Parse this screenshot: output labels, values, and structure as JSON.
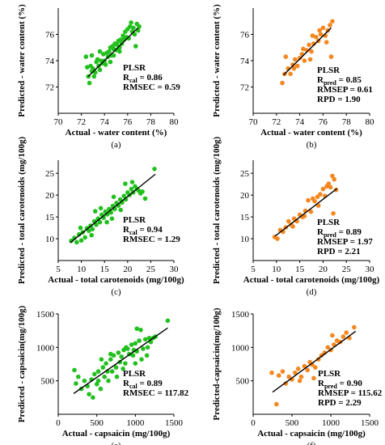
{
  "chart_data": [
    {
      "panel": "a",
      "caption": "(a)",
      "type": "scatter",
      "color": "#22c01e",
      "xlabel": "Actual - water content (%)",
      "ylabel": "Predicted - water content (%)",
      "xlim": [
        70,
        80
      ],
      "ylim": [
        70,
        78
      ],
      "xticks": [
        "70",
        "72",
        "74",
        "76",
        "78",
        "80"
      ],
      "yticks": [
        "72",
        "74",
        "76"
      ],
      "fit": [
        [
          72.6,
          72.8
        ],
        [
          76.9,
          76.5
        ]
      ],
      "annotation": [
        {
          "main": "PLSR"
        },
        {
          "main": "R",
          "sub": "cal",
          "rest": " = 0.86"
        },
        {
          "main": "RMSEC = 0.59"
        }
      ],
      "points": [
        [
          72.4,
          74.3
        ],
        [
          72.5,
          73.5
        ],
        [
          72.6,
          72.8
        ],
        [
          72.7,
          72.3
        ],
        [
          72.8,
          73.6
        ],
        [
          72.9,
          74.4
        ],
        [
          73.0,
          73.4
        ],
        [
          73.1,
          72.8
        ],
        [
          73.2,
          73.1
        ],
        [
          73.3,
          73.9
        ],
        [
          73.4,
          74.1
        ],
        [
          73.5,
          73.6
        ],
        [
          73.6,
          73.3
        ],
        [
          73.7,
          74.0
        ],
        [
          73.8,
          73.8
        ],
        [
          73.9,
          74.5
        ],
        [
          74.0,
          74.0
        ],
        [
          74.1,
          73.7
        ],
        [
          74.2,
          74.6
        ],
        [
          74.3,
          74.3
        ],
        [
          74.4,
          74.7
        ],
        [
          74.5,
          75.0
        ],
        [
          74.6,
          74.4
        ],
        [
          74.7,
          75.1
        ],
        [
          74.8,
          74.9
        ],
        [
          74.9,
          75.3
        ],
        [
          75.0,
          74.8
        ],
        [
          75.1,
          75.2
        ],
        [
          75.2,
          75.5
        ],
        [
          75.3,
          75.0
        ],
        [
          75.4,
          75.6
        ],
        [
          75.5,
          75.3
        ],
        [
          75.6,
          75.9
        ],
        [
          75.7,
          75.6
        ],
        [
          75.8,
          76.2
        ],
        [
          75.9,
          75.8
        ],
        [
          76.0,
          76.4
        ],
        [
          76.1,
          75.7
        ],
        [
          76.2,
          76.6
        ],
        [
          76.3,
          76.9
        ],
        [
          76.4,
          76.2
        ],
        [
          76.5,
          76.5
        ],
        [
          76.6,
          76.0
        ],
        [
          76.7,
          75.1
        ],
        [
          76.8,
          76.8
        ],
        [
          76.9,
          76.3
        ],
        [
          77.0,
          76.6
        ],
        [
          73.6,
          74.7
        ],
        [
          74.8,
          74.4
        ],
        [
          75.3,
          74.7
        ],
        [
          72.9,
          73.2
        ],
        [
          74.5,
          73.9
        ]
      ]
    },
    {
      "panel": "b",
      "caption": "(b)",
      "type": "scatter",
      "color": "#f4871f",
      "xlabel": "Actual - water content (%)",
      "ylabel": "Predicted - water content (%)",
      "xlim": [
        70,
        80
      ],
      "ylim": [
        70,
        78
      ],
      "xticks": [
        "70",
        "72",
        "74",
        "76",
        "78",
        "80"
      ],
      "yticks": [
        "72",
        "74",
        "76"
      ],
      "fit": [
        [
          72.6,
          72.9
        ],
        [
          76.7,
          76.5
        ]
      ],
      "annotation": [
        {
          "main": "PLSR"
        },
        {
          "main": "R",
          "sub": "pred",
          "rest": " = 0.85"
        },
        {
          "main": "RMSEP = 0.61"
        },
        {
          "main": "RPD = 1.90"
        }
      ],
      "points": [
        [
          72.5,
          72.3
        ],
        [
          72.7,
          73.0
        ],
        [
          72.8,
          74.3
        ],
        [
          73.0,
          73.4
        ],
        [
          73.2,
          73.0
        ],
        [
          73.4,
          73.7
        ],
        [
          73.6,
          74.1
        ],
        [
          73.8,
          73.6
        ],
        [
          74.0,
          74.2
        ],
        [
          74.2,
          74.5
        ],
        [
          74.4,
          74.0
        ],
        [
          74.6,
          74.8
        ],
        [
          74.8,
          75.2
        ],
        [
          75.0,
          74.7
        ],
        [
          75.2,
          75.3
        ],
        [
          75.4,
          75.8
        ],
        [
          75.6,
          75.5
        ],
        [
          75.8,
          76.0
        ],
        [
          76.0,
          76.5
        ],
        [
          76.2,
          75.9
        ],
        [
          76.4,
          76.3
        ],
        [
          76.6,
          76.7
        ],
        [
          76.7,
          74.3
        ],
        [
          76.8,
          77.0
        ],
        [
          74.3,
          74.9
        ],
        [
          75.1,
          75.9
        ],
        [
          73.5,
          73.4
        ],
        [
          74.9,
          74.1
        ],
        [
          75.7,
          76.3
        ],
        [
          76.3,
          75.4
        ]
      ]
    },
    {
      "panel": "c",
      "caption": "(c)",
      "type": "scatter",
      "color": "#22c01e",
      "xlabel": "Actual - total carotenoids (mg/100g)",
      "ylabel": "Predicted - total carotenoids (mg/100g)",
      "xlim": [
        5,
        30
      ],
      "ylim": [
        5,
        28
      ],
      "xticks": [
        "5",
        "10",
        "15",
        "20",
        "25",
        "30"
      ],
      "yticks": [
        "10",
        "15",
        "20",
        "25"
      ],
      "fit": [
        [
          7.6,
          9.1
        ],
        [
          26.0,
          24.8
        ]
      ],
      "annotation": [
        {
          "main": "PLSR"
        },
        {
          "main": "R",
          "sub": "cal",
          "rest": " = 0.94"
        },
        {
          "main": "RMSEC = 1.29"
        }
      ],
      "points": [
        [
          7.8,
          9.5
        ],
        [
          8.5,
          10.2
        ],
        [
          9.0,
          9.2
        ],
        [
          9.5,
          11.0
        ],
        [
          10.0,
          9.6
        ],
        [
          10.3,
          11.5
        ],
        [
          10.8,
          10.3
        ],
        [
          11.2,
          12.4
        ],
        [
          11.6,
          11.8
        ],
        [
          12.0,
          13.0
        ],
        [
          12.4,
          12.2
        ],
        [
          12.8,
          14.0
        ],
        [
          13.2,
          13.2
        ],
        [
          13.6,
          14.6
        ],
        [
          14.0,
          13.8
        ],
        [
          14.4,
          15.5
        ],
        [
          14.8,
          14.8
        ],
        [
          15.2,
          16.2
        ],
        [
          15.6,
          15.6
        ],
        [
          16.0,
          16.8
        ],
        [
          16.4,
          16.0
        ],
        [
          16.8,
          17.5
        ],
        [
          17.2,
          16.8
        ],
        [
          17.6,
          18.2
        ],
        [
          18.0,
          17.6
        ],
        [
          18.4,
          19.0
        ],
        [
          18.8,
          18.3
        ],
        [
          19.2,
          19.8
        ],
        [
          19.6,
          19.0
        ],
        [
          20.0,
          20.6
        ],
        [
          20.4,
          20.0
        ],
        [
          20.8,
          21.4
        ],
        [
          21.2,
          20.6
        ],
        [
          21.6,
          22.0
        ],
        [
          22.0,
          21.4
        ],
        [
          22.4,
          21.0
        ],
        [
          22.8,
          20.4
        ],
        [
          23.2,
          20.8
        ],
        [
          23.8,
          19.2
        ],
        [
          25.8,
          26.0
        ],
        [
          13.0,
          16.3
        ],
        [
          15.5,
          13.8
        ],
        [
          17.0,
          19.6
        ],
        [
          19.5,
          22.6
        ],
        [
          12.2,
          10.8
        ],
        [
          18.5,
          16.6
        ],
        [
          21.0,
          23.0
        ],
        [
          9.8,
          12.5
        ],
        [
          14.2,
          17.0
        ],
        [
          16.6,
          14.6
        ]
      ]
    },
    {
      "panel": "d",
      "caption": "(d)",
      "type": "scatter",
      "color": "#f4871f",
      "xlabel": "Actual - total carotenoids (mg/100g)",
      "ylabel": "Predicted - total carotenoids (mg/100g)",
      "xlim": [
        5,
        30
      ],
      "ylim": [
        5,
        28
      ],
      "xticks": [
        "5",
        "10",
        "15",
        "20",
        "25",
        "30"
      ],
      "yticks": [
        "10",
        "15",
        "20",
        "25"
      ],
      "fit": [
        [
          9.7,
          10.6
        ],
        [
          23.0,
          21.5
        ]
      ],
      "annotation": [
        {
          "main": "PLSR"
        },
        {
          "main": "R",
          "sub": "pred",
          "rest": " = 0.89"
        },
        {
          "main": "RMSEP = 1.97"
        },
        {
          "main": "RPD = 2.21"
        }
      ],
      "points": [
        [
          9.6,
          10.4
        ],
        [
          10.2,
          10.0
        ],
        [
          10.8,
          12.0
        ],
        [
          11.4,
          11.6
        ],
        [
          12.0,
          12.6
        ],
        [
          12.6,
          14.0
        ],
        [
          13.2,
          13.2
        ],
        [
          13.8,
          14.6
        ],
        [
          14.4,
          14.0
        ],
        [
          15.0,
          15.5
        ],
        [
          15.6,
          15.0
        ],
        [
          16.2,
          16.4
        ],
        [
          16.8,
          18.8
        ],
        [
          17.4,
          16.2
        ],
        [
          17.8,
          19.2
        ],
        [
          18.2,
          18.6
        ],
        [
          18.8,
          19.6
        ],
        [
          19.4,
          20.2
        ],
        [
          20.0,
          21.4
        ],
        [
          20.4,
          19.8
        ],
        [
          20.8,
          22.0
        ],
        [
          21.2,
          22.6
        ],
        [
          21.6,
          21.8
        ],
        [
          22.0,
          24.4
        ],
        [
          22.4,
          23.6
        ],
        [
          22.8,
          21.2
        ],
        [
          22.2,
          15.8
        ],
        [
          16.0,
          15.2
        ],
        [
          19.0,
          17.6
        ],
        [
          13.5,
          12.8
        ]
      ]
    },
    {
      "panel": "e",
      "caption": "(e)",
      "type": "scatter",
      "color": "#22c01e",
      "xlabel": "Actual - capsaicin (mg/100g)",
      "ylabel": "Predicted - capsaicin(mg/100g)",
      "xlim": [
        0,
        1500
      ],
      "ylim": [
        0,
        1500
      ],
      "xticks": [
        "0",
        "500",
        "1000",
        "1500"
      ],
      "yticks": [
        "500",
        "1000",
        "1500"
      ],
      "fit": [
        [
          200,
          310
        ],
        [
          1420,
          1290
        ]
      ],
      "annotation": [
        {
          "main": "PLSR"
        },
        {
          "main": "R",
          "sub": "cal",
          "rest": " = 0.89"
        },
        {
          "main": "RMSEC = 117.82"
        }
      ],
      "points": [
        [
          210,
          660
        ],
        [
          230,
          460
        ],
        [
          260,
          560
        ],
        [
          300,
          380
        ],
        [
          340,
          500
        ],
        [
          380,
          420
        ],
        [
          400,
          300
        ],
        [
          430,
          520
        ],
        [
          450,
          250
        ],
        [
          470,
          600
        ],
        [
          500,
          450
        ],
        [
          520,
          640
        ],
        [
          550,
          380
        ],
        [
          580,
          700
        ],
        [
          600,
          560
        ],
        [
          620,
          760
        ],
        [
          650,
          500
        ],
        [
          680,
          820
        ],
        [
          700,
          640
        ],
        [
          720,
          880
        ],
        [
          750,
          700
        ],
        [
          780,
          920
        ],
        [
          800,
          780
        ],
        [
          820,
          860
        ],
        [
          850,
          960
        ],
        [
          870,
          760
        ],
        [
          900,
          980
        ],
        [
          920,
          900
        ],
        [
          950,
          1040
        ],
        [
          970,
          880
        ],
        [
          1000,
          1060
        ],
        [
          1020,
          940
        ],
        [
          1050,
          1100
        ],
        [
          1080,
          820
        ],
        [
          1100,
          980
        ],
        [
          1130,
          1120
        ],
        [
          1160,
          1000
        ],
        [
          1200,
          1080
        ],
        [
          1230,
          1140
        ],
        [
          1260,
          1160
        ],
        [
          1420,
          1400
        ],
        [
          560,
          820
        ],
        [
          640,
          640
        ],
        [
          760,
          560
        ],
        [
          880,
          1000
        ],
        [
          1000,
          760
        ],
        [
          1150,
          880
        ],
        [
          1180,
          1140
        ],
        [
          1020,
          1280
        ],
        [
          1070,
          1260
        ],
        [
          680,
          900
        ],
        [
          520,
          500
        ],
        [
          840,
          680
        ],
        [
          980,
          960
        ]
      ]
    },
    {
      "panel": "f",
      "caption": "(f)",
      "type": "scatter",
      "color": "#f4871f",
      "xlabel": "Actual - capsaicin (mg/100g)",
      "ylabel": "Predicted-capsaicin(mg/100g)",
      "xlim": [
        0,
        1500
      ],
      "ylim": [
        0,
        1500
      ],
      "xticks": [
        "0",
        "500",
        "1000",
        "1500"
      ],
      "yticks": [
        "500",
        "1000",
        "1500"
      ],
      "fit": [
        [
          250,
          330
        ],
        [
          1320,
          1240
        ]
      ],
      "annotation": [
        {
          "main": "PLSR"
        },
        {
          "main": "R",
          "sub": "pred",
          "rest": " = 0.90"
        },
        {
          "main": "RMSEP = 115.62"
        },
        {
          "main": "RPD = 2.29"
        }
      ],
      "points": [
        [
          240,
          620
        ],
        [
          300,
          150
        ],
        [
          330,
          580
        ],
        [
          380,
          640
        ],
        [
          420,
          460
        ],
        [
          460,
          560
        ],
        [
          500,
          520
        ],
        [
          540,
          620
        ],
        [
          580,
          680
        ],
        [
          620,
          560
        ],
        [
          660,
          720
        ],
        [
          700,
          660
        ],
        [
          730,
          780
        ],
        [
          760,
          740
        ],
        [
          800,
          700
        ],
        [
          840,
          820
        ],
        [
          880,
          880
        ],
        [
          920,
          920
        ],
        [
          960,
          1000
        ],
        [
          1000,
          960
        ],
        [
          1040,
          1040
        ],
        [
          1080,
          1100
        ],
        [
          1120,
          1080
        ],
        [
          1160,
          1160
        ],
        [
          1200,
          1220
        ],
        [
          1240,
          1140
        ],
        [
          1300,
          1300
        ],
        [
          1020,
          1180
        ],
        [
          780,
          540
        ],
        [
          600,
          500
        ]
      ]
    }
  ]
}
